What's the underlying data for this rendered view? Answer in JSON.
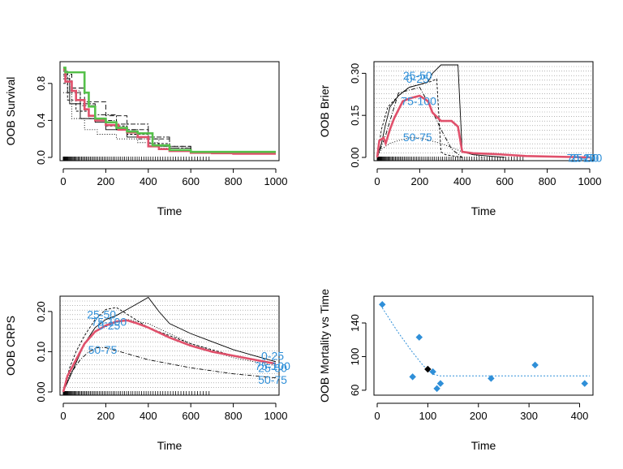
{
  "chart_data": [
    {
      "type": "line",
      "xlabel": "Time",
      "ylabel": "OOB Survival",
      "xlim": [
        0,
        1000
      ],
      "ylim": [
        0,
        1
      ],
      "xticks": [
        0,
        200,
        400,
        600,
        800,
        1000
      ],
      "yticks": [
        0.0,
        0.4,
        0.8
      ],
      "ytick_labels": [
        "0.0",
        "0.4",
        "0.8"
      ],
      "rug": true,
      "series": [
        {
          "role": "overall",
          "color": "#e0506b",
          "x": [
            0,
            10,
            40,
            60,
            100,
            120,
            150,
            200,
            260,
            300,
            350,
            400,
            450,
            500,
            600,
            700,
            800,
            1000
          ],
          "y": [
            0.95,
            0.82,
            0.72,
            0.62,
            0.52,
            0.45,
            0.4,
            0.35,
            0.3,
            0.27,
            0.22,
            0.12,
            0.09,
            0.07,
            0.05,
            0.045,
            0.04,
            0.04
          ]
        },
        {
          "role": "comparison",
          "color": "#55c04a",
          "x": [
            0,
            10,
            70,
            100,
            120,
            150,
            200,
            250,
            300,
            350,
            420,
            500,
            600,
            700,
            800,
            1000
          ],
          "y": [
            0.97,
            0.92,
            0.92,
            0.7,
            0.55,
            0.42,
            0.38,
            0.32,
            0.28,
            0.26,
            0.13,
            0.08,
            0.06,
            0.06,
            0.06,
            0.06
          ]
        },
        {
          "role": "case",
          "color": "#000000",
          "x": [
            0,
            30,
            80,
            150,
            200,
            300,
            400,
            500,
            600
          ],
          "y": [
            0.85,
            0.58,
            0.42,
            0.38,
            0.3,
            0.22,
            0.12,
            0.08,
            0.05
          ]
        },
        {
          "role": "case",
          "color": "#000000",
          "x": [
            0,
            20,
            60,
            120,
            200,
            300,
            400,
            500,
            600
          ],
          "y": [
            0.8,
            0.62,
            0.5,
            0.42,
            0.34,
            0.25,
            0.15,
            0.1,
            0.06
          ]
        },
        {
          "role": "case",
          "color": "#000000",
          "x": [
            0,
            30,
            80,
            150,
            250,
            350,
            450,
            600
          ],
          "y": [
            0.88,
            0.72,
            0.56,
            0.4,
            0.3,
            0.2,
            0.12,
            0.06
          ]
        },
        {
          "role": "case",
          "color": "#000000",
          "x": [
            0,
            40,
            100,
            160,
            250,
            350,
            450,
            600
          ],
          "y": [
            0.7,
            0.42,
            0.3,
            0.25,
            0.2,
            0.16,
            0.1,
            0.06
          ]
        },
        {
          "role": "case",
          "color": "#000000",
          "x": [
            0,
            40,
            100,
            200,
            300,
            400,
            500,
            600
          ],
          "y": [
            0.9,
            0.75,
            0.6,
            0.45,
            0.3,
            0.2,
            0.12,
            0.06
          ]
        },
        {
          "role": "case",
          "color": "#000000",
          "x": [
            0,
            20,
            80,
            150,
            250,
            400,
            500,
            600
          ],
          "y": [
            0.93,
            0.7,
            0.58,
            0.46,
            0.36,
            0.22,
            0.1,
            0.05
          ]
        }
      ]
    },
    {
      "type": "line",
      "xlabel": "Time",
      "ylabel": "OOB Brier",
      "xlim": [
        0,
        1000
      ],
      "ylim": [
        0,
        0.33
      ],
      "xticks": [
        0,
        200,
        400,
        600,
        800,
        1000
      ],
      "yticks": [
        0.0,
        0.15,
        0.3
      ],
      "ytick_labels": [
        "0.00",
        "0.15",
        "0.30"
      ],
      "rug": true,
      "annotations": [
        {
          "text": "25-50",
          "x": 190,
          "y": 0.292
        },
        {
          "text": "0-25",
          "x": 190,
          "y": 0.281
        },
        {
          "text": "75-100",
          "x": 195,
          "y": 0.201
        },
        {
          "text": "50-75",
          "x": 190,
          "y": 0.072
        },
        {
          "text": "75-100",
          "x": 975,
          "y": -0.002
        },
        {
          "text": "0-25",
          "x": 975,
          "y": -0.002
        },
        {
          "text": "25-50",
          "x": 975,
          "y": -0.002
        }
      ],
      "series": [
        {
          "role": "overall",
          "color": "#e0506b",
          "x": [
            0,
            10,
            30,
            40,
            60,
            80,
            100,
            120,
            150,
            200,
            240,
            260,
            300,
            350,
            380,
            400,
            450,
            550,
            700,
            1000
          ],
          "y": [
            0.0,
            0.06,
            0.07,
            0.05,
            0.1,
            0.14,
            0.17,
            0.2,
            0.21,
            0.22,
            0.2,
            0.16,
            0.13,
            0.13,
            0.11,
            0.02,
            0.015,
            0.012,
            0.005,
            0.0
          ]
        },
        {
          "role": "group",
          "color": "#000000",
          "x": [
            0,
            20,
            40,
            60,
            80,
            100,
            150,
            200,
            240,
            260,
            300,
            380,
            400,
            450,
            600
          ],
          "y": [
            0.0,
            0.05,
            0.12,
            0.18,
            0.2,
            0.22,
            0.25,
            0.26,
            0.27,
            0.3,
            0.33,
            0.33,
            0.02,
            0.01,
            0.0
          ]
        },
        {
          "role": "group",
          "color": "#000000",
          "x": [
            0,
            20,
            50,
            100,
            150,
            200,
            250,
            280,
            300,
            320,
            400
          ],
          "y": [
            0.0,
            0.1,
            0.18,
            0.22,
            0.25,
            0.26,
            0.27,
            0.28,
            0.02,
            0.01,
            0.0
          ]
        },
        {
          "role": "group",
          "color": "#000000",
          "x": [
            0,
            40,
            80,
            100,
            150,
            200,
            250,
            300,
            350,
            400
          ],
          "y": [
            0.0,
            0.08,
            0.18,
            0.23,
            0.24,
            0.25,
            0.18,
            0.1,
            0.03,
            0.0
          ]
        },
        {
          "role": "group",
          "color": "#000000",
          "x": [
            0,
            20,
            60,
            100,
            150,
            200,
            300,
            400,
            500
          ],
          "y": [
            0.0,
            0.03,
            0.05,
            0.06,
            0.07,
            0.07,
            0.05,
            0.02,
            0.0
          ]
        }
      ]
    },
    {
      "type": "line",
      "xlabel": "Time",
      "ylabel": "OOB CRPS",
      "xlim": [
        0,
        1000
      ],
      "ylim": [
        0,
        0.23
      ],
      "xticks": [
        0,
        200,
        400,
        600,
        800,
        1000
      ],
      "yticks": [
        0.0,
        0.1,
        0.2
      ],
      "ytick_labels": [
        "0.00",
        "0.10",
        "0.20"
      ],
      "rug": true,
      "annotations": [
        {
          "text": "25-50",
          "x": 180,
          "y": 0.193
        },
        {
          "text": "75-100",
          "x": 215,
          "y": 0.175
        },
        {
          "text": "0-25",
          "x": 215,
          "y": 0.165
        },
        {
          "text": "50-75",
          "x": 185,
          "y": 0.105
        },
        {
          "text": "0-25",
          "x": 985,
          "y": 0.09
        },
        {
          "text": "75-100",
          "x": 985,
          "y": 0.065
        },
        {
          "text": "25-50",
          "x": 985,
          "y": 0.06
        },
        {
          "text": "50-75",
          "x": 985,
          "y": 0.03
        }
      ],
      "series": [
        {
          "role": "overall",
          "color": "#e0506b",
          "x": [
            0,
            20,
            60,
            100,
            150,
            200,
            250,
            300,
            350,
            400,
            500,
            600,
            700,
            800,
            900,
            1000
          ],
          "y": [
            0.0,
            0.04,
            0.08,
            0.12,
            0.15,
            0.165,
            0.175,
            0.178,
            0.17,
            0.16,
            0.135,
            0.115,
            0.1,
            0.09,
            0.08,
            0.07
          ]
        },
        {
          "role": "group",
          "color": "#000000",
          "x": [
            0,
            50,
            100,
            150,
            200,
            250,
            300,
            350,
            400,
            450,
            500,
            600,
            700,
            800,
            900,
            1000
          ],
          "y": [
            0.0,
            0.06,
            0.12,
            0.16,
            0.18,
            0.19,
            0.205,
            0.22,
            0.235,
            0.2,
            0.17,
            0.145,
            0.125,
            0.105,
            0.09,
            0.075
          ]
        },
        {
          "role": "group",
          "color": "#000000",
          "x": [
            0,
            30,
            60,
            100,
            150,
            200,
            250,
            400,
            600,
            800,
            1000
          ],
          "y": [
            0.0,
            0.06,
            0.1,
            0.14,
            0.18,
            0.205,
            0.21,
            0.16,
            0.12,
            0.09,
            0.07
          ]
        },
        {
          "role": "group",
          "color": "#000000",
          "x": [
            0,
            40,
            80,
            120,
            160,
            200,
            300,
            400,
            600,
            800,
            1000
          ],
          "y": [
            0.0,
            0.05,
            0.08,
            0.1,
            0.11,
            0.11,
            0.095,
            0.08,
            0.06,
            0.045,
            0.035
          ]
        },
        {
          "role": "group",
          "color": "#000000",
          "x": [
            0,
            50,
            100,
            150,
            200,
            300,
            400,
            600,
            800,
            1000
          ],
          "y": [
            0.0,
            0.07,
            0.12,
            0.15,
            0.165,
            0.18,
            0.17,
            0.12,
            0.085,
            0.065
          ]
        }
      ]
    },
    {
      "type": "scatter",
      "xlabel": "Time",
      "ylabel": "OOB Mortality vs Time",
      "xlim": [
        0,
        420
      ],
      "ylim": [
        58,
        168
      ],
      "xticks": [
        0,
        100,
        200,
        300,
        400
      ],
      "yticks": [
        60,
        100,
        140
      ],
      "points": {
        "color": "#2f8fd8",
        "x": [
          10,
          70,
          83,
          110,
          118,
          125,
          225,
          312,
          410
        ],
        "y": [
          162,
          76,
          123,
          82,
          62,
          68,
          74,
          90,
          68
        ]
      },
      "highlight": {
        "x": 100,
        "y": 85,
        "color": "#000000"
      },
      "fit_line": {
        "color": "#2f8fd8",
        "x": [
          10,
          40,
          70,
          90,
          100,
          110,
          125,
          420
        ],
        "y": [
          158,
          130,
          105,
          90,
          84,
          79,
          77,
          77
        ]
      }
    }
  ]
}
